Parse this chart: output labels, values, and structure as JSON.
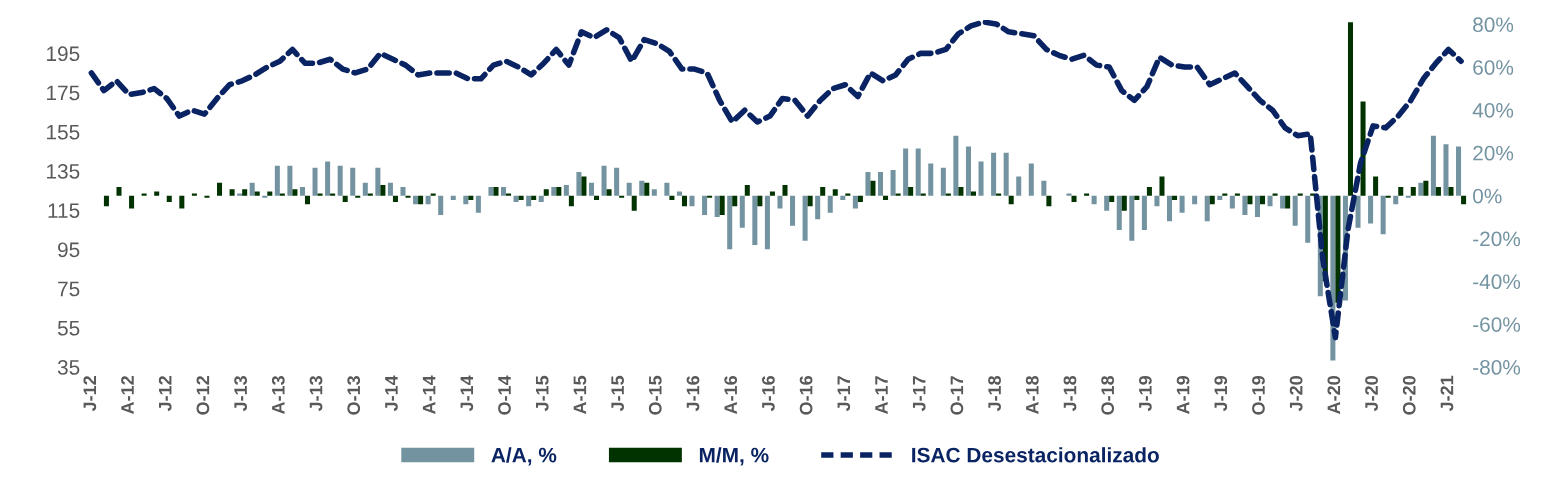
{
  "chart_data": {
    "type": "bar",
    "categories": [
      "J-12",
      null,
      null,
      "A-12",
      null,
      null,
      "J-12",
      null,
      null,
      "O-12",
      null,
      null,
      "J-13",
      null,
      null,
      "A-13",
      null,
      null,
      "J-13",
      null,
      null,
      "O-13",
      null,
      null,
      "J-14",
      null,
      null,
      "A-14",
      null,
      null,
      "J-14",
      null,
      null,
      "O-14",
      null,
      null,
      "J-15",
      null,
      null,
      "A-15",
      null,
      null,
      "J-15",
      null,
      null,
      "O-15",
      null,
      null,
      "J-16",
      null,
      null,
      "A-16",
      null,
      null,
      "J-16",
      null,
      null,
      "O-16",
      null,
      null,
      "J-17",
      null,
      null,
      "A-17",
      null,
      null,
      "J-17",
      null,
      null,
      "O-17",
      null,
      null,
      "J-18",
      null,
      null,
      "A-18",
      null,
      null,
      "J-18",
      null,
      null,
      "O-18",
      null,
      null,
      "J-19",
      null,
      null,
      "A-19",
      null,
      null,
      "J-19",
      null,
      null,
      "O-19",
      null,
      null,
      "J-20",
      null,
      null,
      "A-20",
      null,
      null,
      "J-20",
      null,
      null,
      "O-20",
      null,
      null,
      "J-21",
      null
    ],
    "series": [
      {
        "name": "A/A, %",
        "axis": "y2",
        "color": "#7393a1",
        "values": [
          null,
          null,
          null,
          null,
          null,
          null,
          null,
          null,
          null,
          null,
          null,
          null,
          1,
          6,
          -1,
          14,
          14,
          4,
          13,
          16,
          14,
          13,
          6,
          13,
          6,
          4,
          -4,
          -4,
          -9,
          -2,
          -4,
          -8,
          4,
          4,
          -3,
          -5,
          -3,
          4,
          5,
          11,
          6,
          14,
          13,
          6,
          7,
          3,
          6,
          2,
          -5,
          -9,
          -10,
          -25,
          -15,
          -23,
          -25,
          -6,
          -14,
          -21,
          -11,
          -8,
          -2,
          -6,
          11,
          11,
          12,
          22,
          22,
          15,
          13,
          28,
          23,
          16,
          20,
          20,
          9,
          15,
          7,
          0,
          1,
          0,
          -4,
          -7,
          -16,
          -21,
          -16,
          -5,
          -12,
          -8,
          -4,
          -12,
          -2,
          -6,
          -9,
          -10,
          -5,
          -6,
          -14,
          -22,
          -47,
          -77,
          -49,
          -15,
          -13,
          -18,
          -4,
          -1,
          6,
          28,
          24,
          23
        ]
      },
      {
        "name": "M/M, %",
        "axis": "y2",
        "color": "#003300",
        "values": [
          null,
          -5,
          4,
          -6,
          1,
          2,
          -3,
          -6,
          1,
          -1,
          6,
          3,
          3,
          2,
          2,
          1,
          3,
          -4,
          1,
          1,
          -3,
          -1,
          1,
          5,
          -3,
          -1,
          -4,
          1,
          0,
          0,
          -2,
          0,
          4,
          1,
          -2,
          -2,
          3,
          4,
          -5,
          9,
          -2,
          3,
          -1,
          -7,
          6,
          0,
          -2,
          -5,
          0,
          -1,
          -9,
          -5,
          5,
          -5,
          2,
          5,
          0,
          -5,
          4,
          3,
          1,
          -3,
          7,
          -2,
          1,
          4,
          1,
          0,
          1,
          4,
          2,
          0,
          1,
          -4,
          0,
          0,
          -5,
          0,
          -3,
          1,
          0,
          -3,
          -7,
          -2,
          4,
          9,
          -2,
          0,
          0,
          -4,
          1,
          1,
          -4,
          -4,
          1,
          -6,
          1,
          1,
          -40,
          -50,
          81,
          44,
          9,
          -1,
          4,
          4,
          7,
          4,
          4,
          -4
        ]
      },
      {
        "name": "ISAC Desestacionalizado",
        "type": "line",
        "line_style": "dashed",
        "color": "#0a2463",
        "values": [
          185,
          176,
          181,
          174,
          175,
          177,
          172,
          163,
          166,
          164,
          172,
          179,
          181,
          184,
          188,
          191,
          197,
          190,
          190,
          192,
          187,
          185,
          187,
          195,
          192,
          189,
          184,
          185,
          185,
          185,
          182,
          182,
          189,
          191,
          188,
          184,
          190,
          197,
          189,
          206,
          203,
          207,
          203,
          191,
          202,
          200,
          196,
          187,
          187,
          185,
          171,
          160,
          166,
          160,
          163,
          172,
          171,
          163,
          171,
          177,
          179,
          173,
          185,
          181,
          184,
          192,
          195,
          195,
          197,
          205,
          209,
          211,
          210,
          206,
          205,
          204,
          197,
          194,
          192,
          194,
          189,
          188,
          176,
          171,
          178,
          193,
          189,
          188,
          188,
          179,
          182,
          185,
          178,
          171,
          166,
          157,
          153,
          154,
          90,
          50,
          105,
          139,
          158,
          157,
          163,
          171,
          182,
          190,
          197,
          191
        ]
      }
    ],
    "ylim": [
      35,
      212
    ],
    "yticks": [
      35,
      55,
      75,
      95,
      115,
      135,
      155,
      175,
      195
    ],
    "y2lim": [
      -80,
      82
    ],
    "y2ticks": [
      {
        "value": -80,
        "label": "-80%"
      },
      {
        "value": -60,
        "label": "-60%"
      },
      {
        "value": -40,
        "label": "-40%"
      },
      {
        "value": -20,
        "label": "-20%"
      },
      {
        "value": 0,
        "label": "0%"
      },
      {
        "value": 20,
        "label": "20%"
      },
      {
        "value": 40,
        "label": "40%"
      },
      {
        "value": 60,
        "label": "60%"
      },
      {
        "value": 80,
        "label": "80%"
      }
    ],
    "legend": "bottom"
  }
}
